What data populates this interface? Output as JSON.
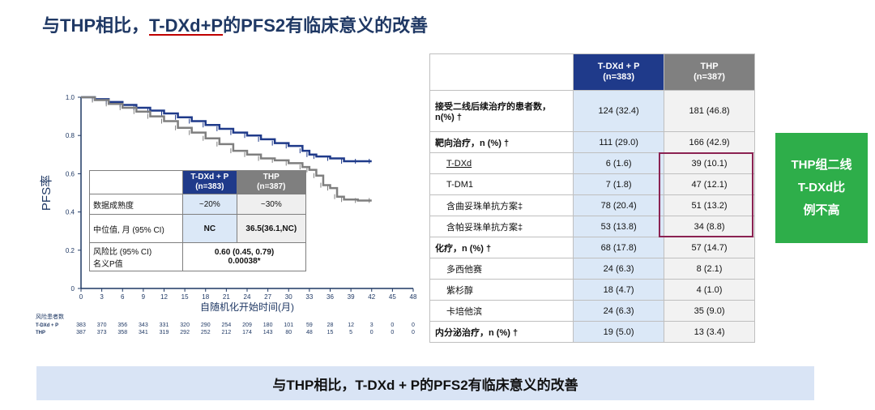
{
  "title": {
    "part1": "与THP相比，",
    "underlined": "T-DXd+P",
    "part2": "的PFS2有临床意义的改善"
  },
  "chart_data": {
    "type": "line",
    "ylabel": "PFS率",
    "xlabel": "自随机化开始时间(月)",
    "xlim": [
      0,
      48
    ],
    "ylim": [
      0,
      1.0
    ],
    "xticks": [
      0,
      3,
      6,
      9,
      12,
      15,
      18,
      21,
      24,
      27,
      30,
      33,
      36,
      39,
      42,
      45,
      48
    ],
    "yticks": [
      0,
      0.2,
      0.4,
      0.6,
      0.8,
      1.0
    ],
    "ytick_labels": [
      "0",
      "0.2",
      "0.4",
      "0.6",
      "0.8",
      "1.0"
    ],
    "series": [
      {
        "name": "T-DXd + P",
        "color": "#1f3a8a",
        "x": [
          0,
          2,
          4,
          6,
          8,
          10,
          12,
          14,
          16,
          18,
          20,
          22,
          24,
          26,
          28,
          30,
          32,
          33,
          34,
          36,
          38,
          40,
          42
        ],
        "y": [
          1.0,
          0.99,
          0.975,
          0.96,
          0.945,
          0.93,
          0.915,
          0.895,
          0.875,
          0.855,
          0.835,
          0.815,
          0.8,
          0.78,
          0.76,
          0.745,
          0.72,
          0.7,
          0.69,
          0.68,
          0.665,
          0.665,
          0.665
        ]
      },
      {
        "name": "THP",
        "color": "#7f7f7f",
        "x": [
          0,
          2,
          4,
          6,
          8,
          10,
          12,
          14,
          16,
          18,
          20,
          22,
          24,
          26,
          28,
          30,
          32,
          33,
          34,
          35,
          36,
          37,
          38,
          40,
          42
        ],
        "y": [
          1.0,
          0.985,
          0.965,
          0.945,
          0.925,
          0.9,
          0.875,
          0.84,
          0.815,
          0.785,
          0.755,
          0.72,
          0.7,
          0.68,
          0.67,
          0.655,
          0.635,
          0.62,
          0.59,
          0.54,
          0.525,
          0.48,
          0.465,
          0.46,
          0.46
        ]
      }
    ],
    "risk_table": {
      "header": "风险患者数",
      "rows": [
        {
          "label": "T-DXd + P",
          "values": [
            "383",
            "370",
            "356",
            "343",
            "331",
            "320",
            "290",
            "254",
            "209",
            "180",
            "101",
            "59",
            "28",
            "12",
            "3",
            "0",
            "0"
          ]
        },
        {
          "label": "THP",
          "values": [
            "387",
            "373",
            "358",
            "341",
            "319",
            "292",
            "252",
            "212",
            "174",
            "143",
            "80",
            "48",
            "15",
            "5",
            "0",
            "0",
            "0"
          ]
        }
      ]
    }
  },
  "inset_table": {
    "col1": "T-DXd + P\n(n=383)",
    "col2": "THP\n(n=387)",
    "rows": [
      {
        "label": "数据成熟度",
        "v1": "~20%",
        "v2": "~30%"
      },
      {
        "label": "中位值, 月 (95% CI)",
        "v1": "NC",
        "v2": "36.5(36.1,NC)"
      },
      {
        "label": "风险比 (95% CI)\n名义P值",
        "merged": "0.60 (0.45, 0.79)\n0.00038*"
      }
    ]
  },
  "right_table": {
    "col1": "T-DXd + P\n(n=383)",
    "col2": "THP\n(n=387)",
    "rows": [
      {
        "label": "接受二线后续治疗的患者数，n(%) †",
        "v1": "124 (32.4)",
        "v2": "181 (46.8)",
        "bold": true
      },
      {
        "label": "靶向治疗，n (%) †",
        "v1": "111 (29.0)",
        "v2": "166 (42.9)",
        "bold": true
      },
      {
        "label": "T-DXd",
        "v1": "6 (1.6)",
        "v2": "39 (10.1)",
        "bold": false
      },
      {
        "label": "T-DM1",
        "v1": "7 (1.8)",
        "v2": "47 (12.1)",
        "bold": false
      },
      {
        "label": "含曲妥珠单抗方案‡",
        "v1": "78 (20.4)",
        "v2": "51 (13.2)",
        "bold": false
      },
      {
        "label": "含帕妥珠单抗方案‡",
        "v1": "53 (13.8)",
        "v2": "34 (8.8)",
        "bold": false
      },
      {
        "label": "化疗，n (%) †",
        "v1": "68 (17.8)",
        "v2": "57 (14.7)",
        "bold": true
      },
      {
        "label": "多西他赛",
        "v1": "24 (6.3)",
        "v2": "8 (2.1)",
        "bold": false
      },
      {
        "label": "紫杉醇",
        "v1": "18 (4.7)",
        "v2": "4 (1.0)",
        "bold": false
      },
      {
        "label": "卡培他滨",
        "v1": "24 (6.3)",
        "v2": "35 (9.0)",
        "bold": false
      },
      {
        "label": "内分泌治疗，n (%) †",
        "v1": "19 (5.0)",
        "v2": "13 (3.4)",
        "bold": true
      }
    ]
  },
  "callout": {
    "line1": "THP组二线",
    "line2": "T-DXd比",
    "line3": "例不高",
    "color": "#2eae4a"
  },
  "banner": "与THP相比，T-DXd + P的PFS2有临床意义的改善"
}
